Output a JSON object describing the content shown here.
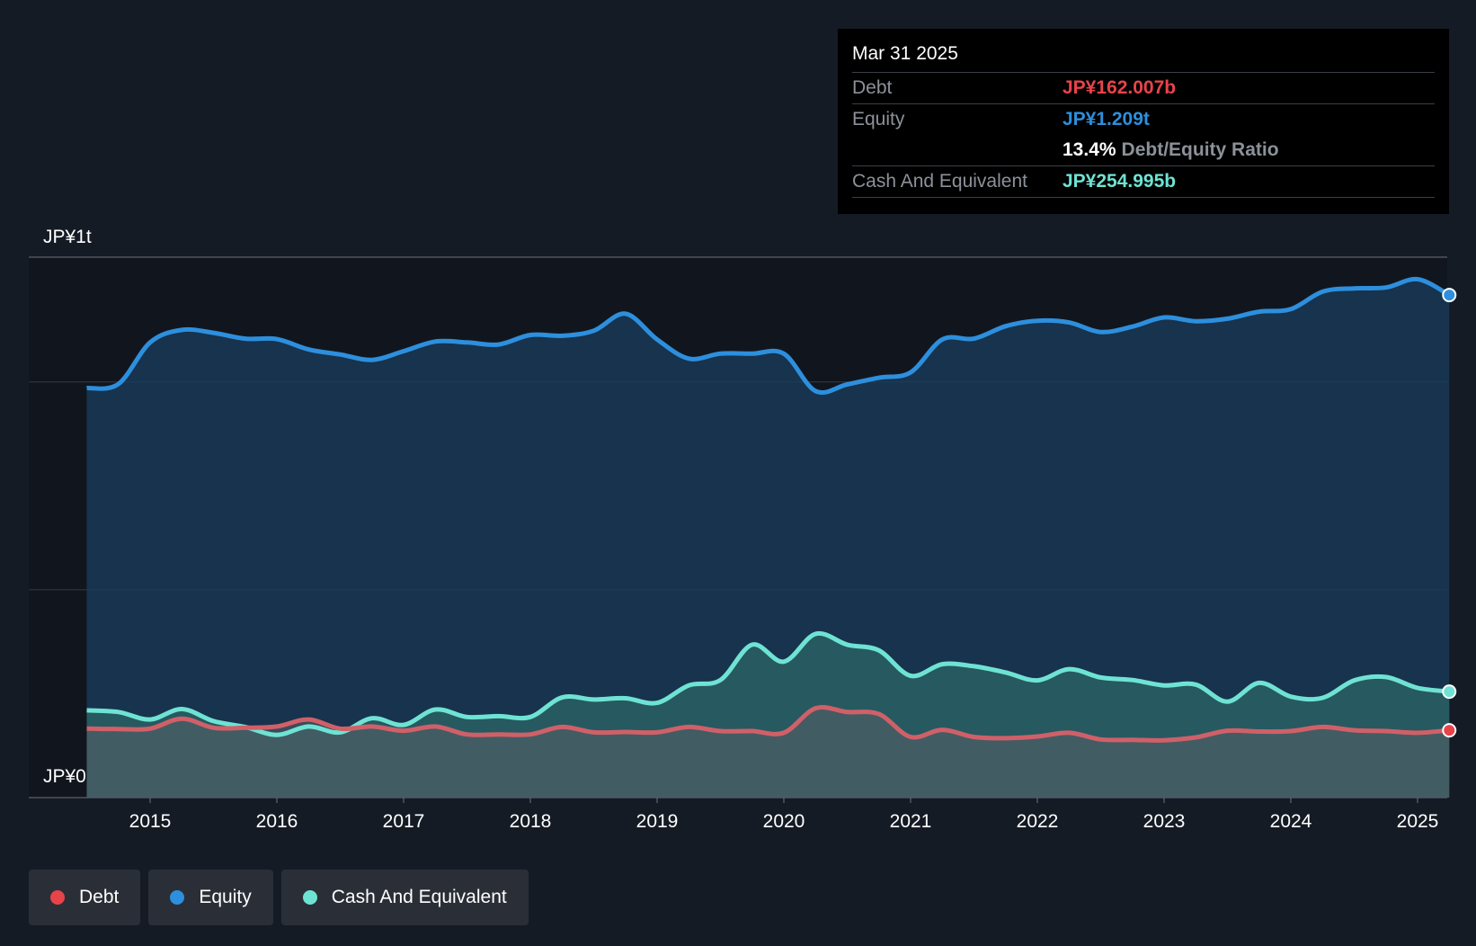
{
  "colors": {
    "background": "#151b24",
    "plot_background": "#11161e",
    "debt": "#e8434b",
    "equity": "#2d8fdd",
    "cash": "#6fe3d3",
    "grid": "#323a45"
  },
  "tooltip": {
    "date": "Mar 31 2025",
    "debt_label": "Debt",
    "debt_value": "JP¥162.007b",
    "equity_label": "Equity",
    "equity_value": "JP¥1.209t",
    "ratio_value": "13.4%",
    "ratio_label": "Debt/Equity Ratio",
    "cash_label": "Cash And Equivalent",
    "cash_value": "JP¥254.995b"
  },
  "legend": {
    "debt": "Debt",
    "equity": "Equity",
    "cash": "Cash And Equivalent"
  },
  "chart_data": {
    "type": "area",
    "title": "",
    "y_tick_labels": [
      "JP¥1t",
      "JP¥0"
    ],
    "x_tick_labels": [
      "2015",
      "2016",
      "2017",
      "2018",
      "2019",
      "2020",
      "2021",
      "2022",
      "2023",
      "2024",
      "2025"
    ],
    "ylim": [
      0,
      1300
    ],
    "y_unit": "JP¥ billions",
    "xlim": [
      2014.5,
      2025.25
    ],
    "grid": true,
    "series": [
      {
        "name": "Equity",
        "points": [
          [
            2014.5,
            985
          ],
          [
            2014.75,
            995
          ],
          [
            2015.0,
            1095
          ],
          [
            2015.25,
            1125
          ],
          [
            2015.5,
            1118
          ],
          [
            2015.75,
            1104
          ],
          [
            2016.0,
            1103
          ],
          [
            2016.25,
            1078
          ],
          [
            2016.5,
            1066
          ],
          [
            2016.75,
            1053
          ],
          [
            2017.0,
            1074
          ],
          [
            2017.25,
            1097
          ],
          [
            2017.5,
            1095
          ],
          [
            2017.75,
            1090
          ],
          [
            2018.0,
            1113
          ],
          [
            2018.25,
            1111
          ],
          [
            2018.5,
            1123
          ],
          [
            2018.75,
            1164
          ],
          [
            2019.0,
            1102
          ],
          [
            2019.25,
            1056
          ],
          [
            2019.5,
            1068
          ],
          [
            2019.75,
            1068
          ],
          [
            2020.0,
            1068
          ],
          [
            2020.25,
            978
          ],
          [
            2020.5,
            994
          ],
          [
            2020.75,
            1010
          ],
          [
            2021.0,
            1023
          ],
          [
            2021.25,
            1102
          ],
          [
            2021.5,
            1104
          ],
          [
            2021.75,
            1134
          ],
          [
            2022.0,
            1147
          ],
          [
            2022.25,
            1143
          ],
          [
            2022.5,
            1120
          ],
          [
            2022.75,
            1133
          ],
          [
            2023.0,
            1155
          ],
          [
            2023.25,
            1146
          ],
          [
            2023.5,
            1152
          ],
          [
            2023.75,
            1169
          ],
          [
            2024.0,
            1175
          ],
          [
            2024.25,
            1217
          ],
          [
            2024.5,
            1225
          ],
          [
            2024.75,
            1227
          ],
          [
            2025.0,
            1247
          ],
          [
            2025.25,
            1209
          ]
        ]
      },
      {
        "name": "Cash And Equivalent",
        "points": [
          [
            2014.5,
            210
          ],
          [
            2014.75,
            206
          ],
          [
            2015.0,
            188
          ],
          [
            2015.25,
            213
          ],
          [
            2015.5,
            184
          ],
          [
            2015.75,
            170
          ],
          [
            2016.0,
            151
          ],
          [
            2016.25,
            171
          ],
          [
            2016.5,
            157
          ],
          [
            2016.75,
            191
          ],
          [
            2017.0,
            175
          ],
          [
            2017.25,
            212
          ],
          [
            2017.5,
            194
          ],
          [
            2017.75,
            196
          ],
          [
            2018.0,
            194
          ],
          [
            2018.25,
            241
          ],
          [
            2018.5,
            236
          ],
          [
            2018.75,
            239
          ],
          [
            2019.0,
            228
          ],
          [
            2019.25,
            270
          ],
          [
            2019.5,
            283
          ],
          [
            2019.75,
            368
          ],
          [
            2020.0,
            327
          ],
          [
            2020.25,
            394
          ],
          [
            2020.5,
            368
          ],
          [
            2020.75,
            354
          ],
          [
            2021.0,
            293
          ],
          [
            2021.25,
            321
          ],
          [
            2021.5,
            316
          ],
          [
            2021.75,
            301
          ],
          [
            2022.0,
            282
          ],
          [
            2022.25,
            309
          ],
          [
            2022.5,
            289
          ],
          [
            2022.75,
            283
          ],
          [
            2023.0,
            270
          ],
          [
            2023.25,
            272
          ],
          [
            2023.5,
            231
          ],
          [
            2023.75,
            276
          ],
          [
            2024.0,
            243
          ],
          [
            2024.25,
            240
          ],
          [
            2024.5,
            282
          ],
          [
            2024.75,
            290
          ],
          [
            2025.0,
            264
          ],
          [
            2025.25,
            255
          ]
        ]
      },
      {
        "name": "Debt",
        "points": [
          [
            2014.5,
            166
          ],
          [
            2014.75,
            165
          ],
          [
            2015.0,
            166
          ],
          [
            2015.25,
            190
          ],
          [
            2015.5,
            168
          ],
          [
            2015.75,
            168
          ],
          [
            2016.0,
            171
          ],
          [
            2016.25,
            188
          ],
          [
            2016.5,
            166
          ],
          [
            2016.75,
            171
          ],
          [
            2017.0,
            161
          ],
          [
            2017.25,
            171
          ],
          [
            2017.5,
            152
          ],
          [
            2017.75,
            152
          ],
          [
            2018.0,
            152
          ],
          [
            2018.25,
            170
          ],
          [
            2018.5,
            157
          ],
          [
            2018.75,
            158
          ],
          [
            2019.0,
            157
          ],
          [
            2019.25,
            170
          ],
          [
            2019.5,
            160
          ],
          [
            2019.75,
            160
          ],
          [
            2020.0,
            156
          ],
          [
            2020.25,
            215
          ],
          [
            2020.5,
            206
          ],
          [
            2020.75,
            201
          ],
          [
            2021.0,
            146
          ],
          [
            2021.25,
            163
          ],
          [
            2021.5,
            146
          ],
          [
            2021.75,
            143
          ],
          [
            2022.0,
            147
          ],
          [
            2022.25,
            156
          ],
          [
            2022.5,
            140
          ],
          [
            2022.75,
            139
          ],
          [
            2023.0,
            138
          ],
          [
            2023.25,
            145
          ],
          [
            2023.5,
            161
          ],
          [
            2023.75,
            159
          ],
          [
            2024.0,
            160
          ],
          [
            2024.25,
            170
          ],
          [
            2024.5,
            162
          ],
          [
            2024.75,
            160
          ],
          [
            2025.0,
            156
          ],
          [
            2025.25,
            162
          ]
        ]
      }
    ]
  }
}
